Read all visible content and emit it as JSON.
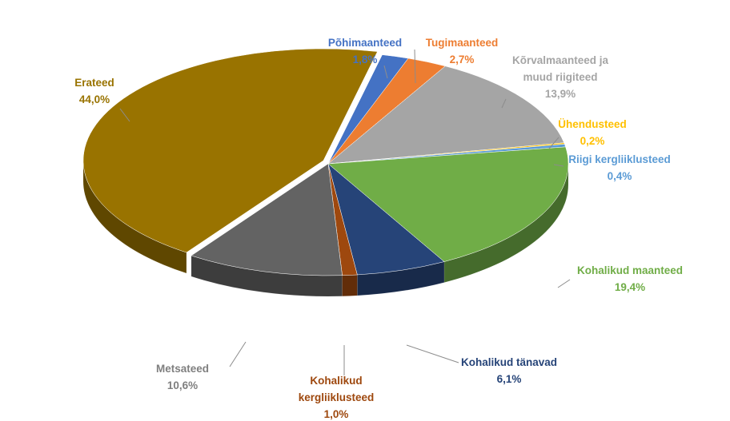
{
  "chart_data": {
    "type": "pie",
    "style": "3d-exploded",
    "title": "",
    "slices": [
      {
        "name": "Põhimaanteed",
        "label_lines": [
          "Põhimaanteed"
        ],
        "value": 1.8,
        "value_label": "1,8%",
        "color": "#4472C4",
        "label_color": "#4472C4"
      },
      {
        "name": "Tugimaanteed",
        "label_lines": [
          "Tugimaanteed"
        ],
        "value": 2.7,
        "value_label": "2,7%",
        "color": "#ED7D31",
        "label_color": "#ED7D31"
      },
      {
        "name": "Kõrvalmaanteed ja muud riigiteed",
        "label_lines": [
          "Kõrvalmaanteed ja",
          "muud riigiteed"
        ],
        "value": 13.9,
        "value_label": "13,9%",
        "color": "#A5A5A5",
        "label_color": "#A5A5A5"
      },
      {
        "name": "Ühendusteed",
        "label_lines": [
          "Ühendusteed"
        ],
        "value": 0.2,
        "value_label": "0,2%",
        "color": "#FFC000",
        "label_color": "#FFC000"
      },
      {
        "name": "Riigi kergliiklusteed",
        "label_lines": [
          "Riigi kergliiklusteed"
        ],
        "value": 0.4,
        "value_label": "0,4%",
        "color": "#5B9BD5",
        "label_color": "#5B9BD5"
      },
      {
        "name": "Kohalikud maanteed",
        "label_lines": [
          "Kohalikud maanteed"
        ],
        "value": 19.4,
        "value_label": "19,4%",
        "color": "#70AD47",
        "label_color": "#70AD47"
      },
      {
        "name": "Kohalikud tänavad",
        "label_lines": [
          "Kohalikud tänavad"
        ],
        "value": 6.1,
        "value_label": "6,1%",
        "color": "#264478",
        "label_color": "#264478"
      },
      {
        "name": "Kohalikud kergliiklusteed",
        "label_lines": [
          "Kohalikud",
          "kergliiklusteed"
        ],
        "value": 1.0,
        "value_label": "1,0%",
        "color": "#9E480E",
        "label_color": "#9E480E"
      },
      {
        "name": "Metsateed",
        "label_lines": [
          "Metsateed"
        ],
        "value": 10.6,
        "value_label": "10,6%",
        "color": "#636363",
        "label_color": "#7F7F7F"
      },
      {
        "name": "Erateed",
        "label_lines": [
          "Erateed"
        ],
        "value": 44.0,
        "value_label": "44,0%",
        "color": "#997300",
        "label_color": "#997300"
      }
    ]
  }
}
